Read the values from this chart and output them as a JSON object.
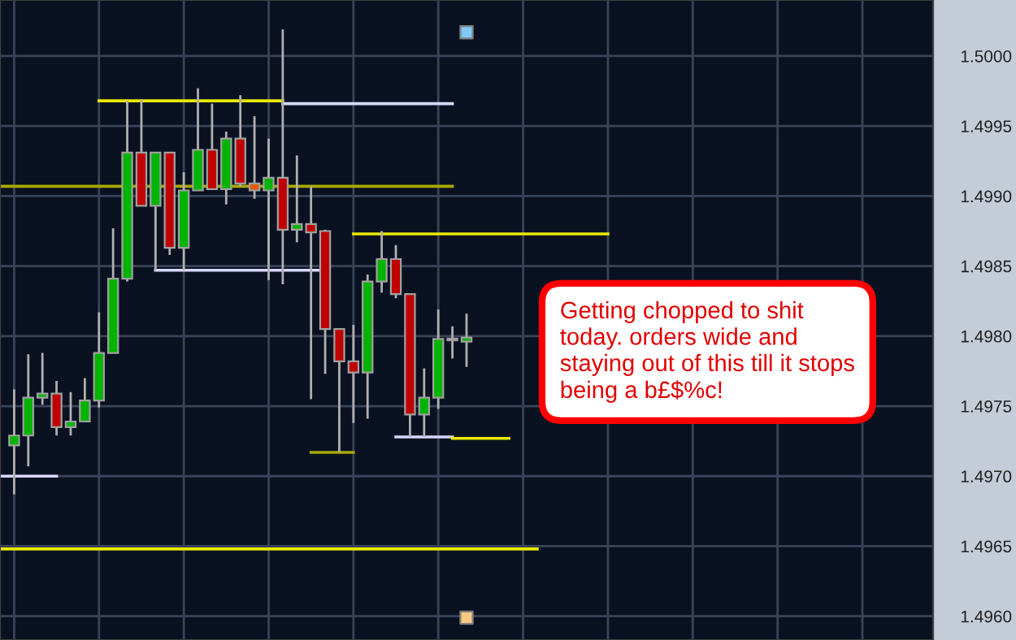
{
  "chart_data": {
    "type": "candlestick",
    "categories": [
      null,
      null,
      null,
      null,
      null,
      null,
      null,
      null,
      null,
      null,
      null,
      null,
      null,
      null,
      null,
      null,
      null,
      null,
      null,
      null,
      null,
      null,
      null,
      null,
      null,
      null,
      null,
      null,
      null,
      null,
      null,
      null,
      null,
      null,
      null,
      null,
      null,
      null,
      null,
      null,
      null,
      null,
      null,
      null,
      null,
      null,
      null,
      null,
      null,
      null,
      null,
      null,
      null,
      null,
      null,
      null,
      null,
      null,
      null,
      null,
      null,
      null,
      null,
      null,
      null,
      null,
      null
    ],
    "ohlc": [
      null,
      [
        1.49722,
        1.49762,
        1.49687,
        1.49729
      ],
      [
        1.49729,
        1.49787,
        1.49707,
        1.49756
      ],
      [
        1.49756,
        1.49788,
        1.49751,
        1.49759
      ],
      [
        1.49759,
        1.49768,
        1.49729,
        1.49735
      ],
      [
        1.49735,
        1.4976,
        1.49729,
        1.49739
      ],
      [
        1.49739,
        1.4977,
        1.49739,
        1.49754
      ],
      [
        1.49754,
        1.49817,
        1.49749,
        1.49788
      ],
      [
        1.49788,
        1.49877,
        1.49788,
        1.49841
      ],
      [
        1.49841,
        1.49968,
        1.49839,
        1.49931
      ],
      [
        1.49931,
        1.49969,
        1.49893,
        1.49893
      ],
      [
        1.49893,
        1.49931,
        1.49847,
        1.49931
      ],
      [
        1.49931,
        1.49931,
        1.49858,
        1.49863
      ],
      [
        1.49863,
        1.49917,
        1.49847,
        1.49904
      ],
      [
        1.49904,
        1.49977,
        1.49904,
        1.49933
      ],
      [
        1.49933,
        1.49966,
        1.49905,
        1.49905
      ],
      [
        1.49905,
        1.49946,
        1.49894,
        1.49941
      ],
      [
        1.49941,
        1.49972,
        1.49907,
        1.49909
      ],
      [
        1.49909,
        1.49957,
        1.49898,
        1.49904
      ],
      [
        1.49904,
        1.49941,
        1.4984,
        1.49913
      ],
      [
        1.49913,
        1.50019,
        1.49837,
        1.49876
      ],
      [
        1.49876,
        1.49929,
        1.49867,
        1.4988
      ],
      [
        1.4988,
        1.49907,
        1.49755,
        1.49874
      ],
      [
        1.49875,
        1.49876,
        1.49773,
        1.49805
      ],
      [
        1.49805,
        1.49805,
        1.49717,
        1.49782
      ],
      [
        1.49782,
        1.49808,
        1.49738,
        1.49774
      ],
      [
        1.49774,
        1.49844,
        1.49741,
        1.49839
      ],
      [
        1.49839,
        1.49875,
        1.49831,
        1.49855
      ],
      [
        1.49855,
        1.49865,
        1.49827,
        1.4983
      ],
      [
        1.4983,
        1.4983,
        1.49728,
        1.49744
      ],
      [
        1.49744,
        1.49777,
        1.49728,
        1.49756
      ],
      [
        1.49756,
        1.49819,
        1.49748,
        1.49798
      ],
      [
        1.49797,
        1.49807,
        1.49784,
        1.49797
      ],
      [
        1.49796,
        1.49816,
        1.49778,
        1.49799
      ],
      null,
      null,
      null,
      null,
      null,
      null,
      null,
      null,
      null,
      null,
      null,
      null,
      null,
      null,
      null,
      null,
      null,
      null,
      null,
      null,
      null,
      null,
      null,
      null,
      null,
      null,
      null,
      null,
      null,
      null,
      null,
      null,
      null
    ],
    "colors": [
      null,
      "#00b400",
      "#00b400",
      "#00b400",
      "#c00000",
      "#00b400",
      "#00b400",
      "#00b400",
      "#00b400",
      "#00b400",
      "#c00000",
      "#00b400",
      "#c00000",
      "#00b400",
      "#00b400",
      "#c00000",
      "#00b400",
      "#c00000",
      "#e05a00",
      "#00b400",
      "#c00000",
      "#00b400",
      "#c00000",
      "#c00000",
      "#c00000",
      "#c00000",
      "#00b400",
      "#00b400",
      "#c00000",
      "#c00000",
      "#00b400",
      "#00b400",
      "#909090",
      "#00b400",
      null,
      null,
      null,
      null,
      null,
      null,
      null,
      null,
      null,
      null,
      null,
      null,
      null,
      null,
      null,
      null,
      null,
      null,
      null,
      null,
      null,
      null,
      null,
      null,
      null,
      null,
      null,
      null,
      null,
      null,
      null,
      null,
      null
    ],
    "series": [
      {
        "type": "line",
        "color": "#e8e800",
        "values": [
          null,
          null,
          null,
          null,
          null,
          null,
          null,
          1.49968,
          1.49968,
          1.49968,
          1.49968,
          1.49968,
          1.49968,
          1.49968,
          1.49968,
          1.49968,
          1.49968,
          1.49968,
          1.49968,
          1.49968,
          1.49968,
          null,
          null,
          null,
          null,
          null,
          null,
          null,
          null,
          null,
          null,
          null,
          null,
          null,
          null,
          null,
          null,
          null,
          null,
          null,
          null,
          null,
          null,
          null,
          null,
          null,
          null,
          null,
          null,
          null,
          null,
          null,
          null,
          null,
          null,
          null,
          null,
          null,
          null,
          null,
          null,
          null,
          null,
          null,
          null,
          null,
          null
        ]
      },
      {
        "type": "line",
        "color": "#d8d8ff",
        "values": [
          null,
          null,
          null,
          null,
          null,
          null,
          null,
          null,
          null,
          null,
          null,
          null,
          null,
          null,
          null,
          null,
          null,
          null,
          null,
          null,
          1.49966,
          1.49966,
          1.49966,
          1.49966,
          1.49966,
          1.49966,
          1.49966,
          1.49966,
          1.49966,
          1.49966,
          1.49966,
          1.49966,
          1.49966,
          null,
          null,
          null,
          null,
          null,
          null,
          null,
          null,
          null,
          null,
          null,
          null,
          null,
          null,
          null,
          null,
          null,
          null,
          null,
          null,
          null,
          null,
          null,
          null,
          null,
          null,
          null,
          null,
          null,
          null,
          null,
          null,
          null,
          null
        ]
      },
      {
        "type": "line",
        "color": "#a8a800",
        "values": [
          1.49907,
          1.49907,
          1.49907,
          1.49907,
          1.49907,
          1.49907,
          1.49907,
          1.49907,
          1.49907,
          1.49907,
          1.49907,
          1.49907,
          1.49907,
          1.49907,
          1.49907,
          1.49907,
          1.49907,
          1.49907,
          1.49907,
          1.49907,
          1.49907,
          1.49907,
          1.49907,
          1.49907,
          1.49907,
          1.49907,
          1.49907,
          1.49907,
          1.49907,
          1.49907,
          1.49907,
          1.49907,
          1.49907,
          null,
          null,
          null,
          null,
          null,
          null,
          null,
          null,
          null,
          null,
          null,
          null,
          null,
          null,
          null,
          null,
          null,
          null,
          null,
          null,
          null,
          null,
          null,
          null,
          null,
          null,
          null,
          null,
          null,
          null,
          null,
          null,
          null,
          null
        ]
      },
      {
        "type": "line",
        "color": "#d8d8ff",
        "values": [
          null,
          null,
          null,
          null,
          null,
          null,
          null,
          null,
          null,
          null,
          null,
          1.49847,
          1.49847,
          1.49847,
          1.49847,
          1.49847,
          1.49847,
          1.49847,
          1.49847,
          1.49847,
          1.49847,
          1.49847,
          1.49847,
          1.49847,
          null,
          null,
          null,
          null,
          null,
          null,
          null,
          null,
          null,
          null,
          null,
          null,
          null,
          null,
          null,
          null,
          null,
          null,
          null,
          null,
          null,
          null,
          null,
          null,
          null,
          null,
          null,
          null,
          null,
          null,
          null,
          null,
          null,
          null,
          null,
          null,
          null,
          null,
          null,
          null,
          null,
          null,
          null
        ]
      },
      {
        "type": "line",
        "color": "#e8e800",
        "values": [
          null,
          null,
          null,
          null,
          null,
          null,
          null,
          null,
          null,
          null,
          null,
          null,
          null,
          null,
          null,
          null,
          null,
          null,
          null,
          null,
          null,
          null,
          null,
          null,
          null,
          1.49873,
          1.49873,
          1.49873,
          1.49873,
          1.49873,
          1.49873,
          1.49873,
          1.49873,
          1.49873,
          1.49873,
          1.49873,
          1.49873,
          1.49873,
          1.49873,
          1.49873,
          1.49873,
          1.49873,
          1.49873,
          1.49873,
          null,
          null,
          null,
          null,
          null,
          null,
          null,
          null,
          null,
          null,
          null,
          null,
          null,
          null,
          null,
          null,
          null,
          null,
          null,
          null,
          null,
          null,
          null
        ]
      },
      {
        "type": "line",
        "color": "#a8a800",
        "values": [
          null,
          null,
          null,
          null,
          null,
          null,
          null,
          null,
          null,
          null,
          null,
          null,
          null,
          null,
          null,
          null,
          null,
          null,
          null,
          null,
          null,
          null,
          1.49717,
          1.49717,
          1.49717,
          1.49717,
          null,
          null,
          null,
          null,
          null,
          null,
          null,
          null,
          null,
          null,
          null,
          null,
          null,
          null,
          null,
          null,
          null,
          null,
          null,
          null,
          null,
          null,
          null,
          null,
          null,
          null,
          null,
          null,
          null,
          null,
          null,
          null,
          null,
          null,
          null,
          null,
          null,
          null,
          null,
          null,
          null
        ]
      },
      {
        "type": "line",
        "color": "#d8d8ff",
        "values": [
          null,
          null,
          null,
          null,
          null,
          null,
          null,
          null,
          null,
          null,
          null,
          null,
          null,
          null,
          null,
          null,
          null,
          null,
          null,
          null,
          null,
          null,
          null,
          null,
          null,
          null,
          null,
          null,
          1.49728,
          1.49728,
          1.49728,
          1.49728,
          1.49728,
          null,
          null,
          null,
          null,
          null,
          null,
          null,
          null,
          null,
          null,
          null,
          null,
          null,
          null,
          null,
          null,
          null,
          null,
          null,
          null,
          null,
          null,
          null,
          null,
          null,
          null,
          null,
          null,
          null,
          null,
          null,
          null,
          null,
          null
        ]
      },
      {
        "type": "line",
        "color": "#e8e800",
        "values": [
          null,
          null,
          null,
          null,
          null,
          null,
          null,
          null,
          null,
          null,
          null,
          null,
          null,
          null,
          null,
          null,
          null,
          null,
          null,
          null,
          null,
          null,
          null,
          null,
          null,
          null,
          null,
          null,
          null,
          null,
          null,
          null,
          1.49727,
          1.49727,
          1.49727,
          1.49727,
          1.49727,
          null,
          null,
          null,
          null,
          null,
          null,
          null,
          null,
          null,
          null,
          null,
          null,
          null,
          null,
          null,
          null,
          null,
          null,
          null,
          null,
          null,
          null,
          null,
          null,
          null,
          null,
          null,
          null,
          null,
          null
        ]
      },
      {
        "type": "line",
        "color": "#d8d8ff",
        "values": [
          1.497,
          1.497,
          1.497,
          1.497,
          1.497,
          null,
          null,
          null,
          null,
          null,
          null,
          null,
          null,
          null,
          null,
          null,
          null,
          null,
          null,
          null,
          null,
          null,
          null,
          null,
          null,
          null,
          null,
          null,
          null,
          null,
          null,
          null,
          null,
          null,
          null,
          null,
          null,
          null,
          null,
          null,
          null,
          null,
          null,
          null,
          null,
          null,
          null,
          null,
          null,
          null,
          null,
          null,
          null,
          null,
          null,
          null,
          null,
          null,
          null,
          null,
          null,
          null,
          null,
          null,
          null,
          null,
          null
        ]
      },
      {
        "type": "line",
        "color": "#e8e800",
        "values": [
          1.49648,
          1.49648,
          1.49648,
          1.49648,
          1.49648,
          1.49648,
          1.49648,
          1.49648,
          1.49648,
          1.49648,
          1.49648,
          1.49648,
          1.49648,
          1.49648,
          1.49648,
          1.49648,
          1.49648,
          1.49648,
          1.49648,
          1.49648,
          1.49648,
          1.49648,
          1.49648,
          1.49648,
          1.49648,
          1.49648,
          1.49648,
          1.49648,
          1.49648,
          1.49648,
          1.49648,
          1.49648,
          1.49648,
          1.49648,
          1.49648,
          1.49648,
          1.49648,
          1.49648,
          1.49648,
          null,
          null,
          null,
          null,
          null,
          null,
          null,
          null,
          null,
          null,
          null,
          null,
          null,
          null,
          null,
          null,
          null,
          null,
          null,
          null,
          null,
          null,
          null,
          null,
          null,
          null,
          null,
          null
        ]
      },
      {
        "type": "scatter",
        "marker": "square",
        "color": "#80c8f8",
        "values": [
          null,
          null,
          null,
          null,
          null,
          null,
          null,
          null,
          null,
          null,
          null,
          null,
          null,
          null,
          null,
          null,
          null,
          null,
          null,
          null,
          null,
          null,
          null,
          null,
          null,
          null,
          null,
          null,
          null,
          null,
          null,
          null,
          null,
          1.50017,
          null,
          null,
          null,
          null,
          null,
          null,
          null,
          null,
          null,
          null,
          null,
          null,
          null,
          null,
          null,
          null,
          null,
          null,
          null,
          null,
          null,
          null,
          null,
          null,
          null,
          null,
          null,
          null,
          null,
          null,
          null,
          null,
          null
        ]
      },
      {
        "type": "scatter",
        "marker": "square",
        "color": "#f8c880",
        "values": [
          null,
          null,
          null,
          null,
          null,
          null,
          null,
          null,
          null,
          null,
          null,
          null,
          null,
          null,
          null,
          null,
          null,
          null,
          null,
          null,
          null,
          null,
          null,
          null,
          null,
          null,
          null,
          null,
          null,
          null,
          null,
          null,
          null,
          1.49599,
          null,
          null,
          null,
          null,
          null,
          null,
          null,
          null,
          null,
          null,
          null,
          null,
          null,
          null,
          null,
          null,
          null,
          null,
          null,
          null,
          null,
          null,
          null,
          null,
          null,
          null,
          null,
          null,
          null,
          null,
          null,
          null,
          null
        ]
      }
    ],
    "ylim": [
      1.49583,
      1.5004
    ],
    "yticks": [
      {
        "value": 1.496,
        "label": "1.4960"
      },
      {
        "value": 1.4965,
        "label": "1.4965"
      },
      {
        "value": 1.497,
        "label": "1.4970"
      },
      {
        "value": 1.4975,
        "label": "1.4975"
      },
      {
        "value": 1.498,
        "label": "1.4980"
      },
      {
        "value": 1.4985,
        "label": "1.4985"
      },
      {
        "value": 1.499,
        "label": "1.4990"
      },
      {
        "value": 1.4995,
        "label": "1.4995"
      },
      {
        "value": 1.5,
        "label": "1.5000"
      }
    ],
    "tick_labels": "y",
    "grid": true,
    "annotations": [
      "Getting chopped to shit\ntoday. orders wide and\nstaying out of this till it stops\nbeing a b£$%c!"
    ]
  }
}
